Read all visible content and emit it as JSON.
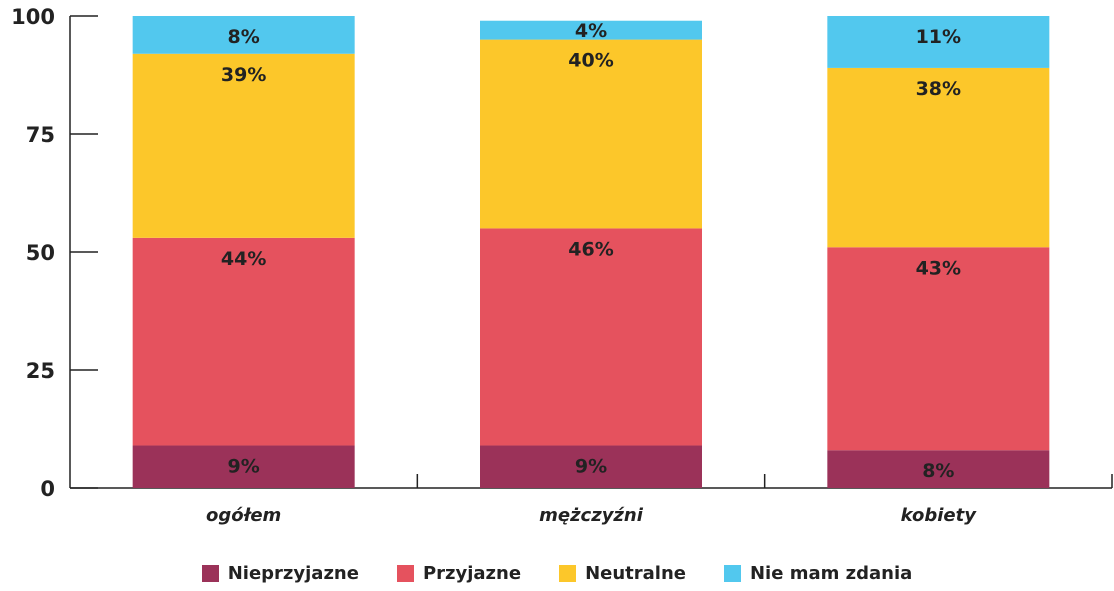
{
  "chart_data": {
    "type": "bar",
    "stacked": true,
    "categories": [
      "ogółem",
      "mężczyźni",
      "kobiety"
    ],
    "series": [
      {
        "name": "Nieprzyjazne",
        "color": "#9B3259",
        "values": [
          9,
          9,
          8
        ],
        "labels": [
          "9%",
          "9%",
          "8%"
        ]
      },
      {
        "name": "Przyjazne",
        "color": "#E5525E",
        "values": [
          44,
          46,
          43
        ],
        "labels": [
          "44%",
          "46%",
          "43%"
        ]
      },
      {
        "name": "Neutralne",
        "color": "#FCC72A",
        "values": [
          39,
          40,
          38
        ],
        "labels": [
          "39%",
          "40%",
          "38%"
        ]
      },
      {
        "name": "Nie mam zdania",
        "color": "#52C8EE",
        "values": [
          8,
          4,
          11
        ],
        "labels": [
          "8%",
          "4%",
          "11%"
        ]
      }
    ],
    "ylim": [
      0,
      100
    ],
    "yticks": [
      0,
      25,
      50,
      75,
      100
    ],
    "ytick_labels": [
      "0",
      "25",
      "50",
      "75",
      "100"
    ],
    "grid": false,
    "legend_position": "bottom"
  }
}
